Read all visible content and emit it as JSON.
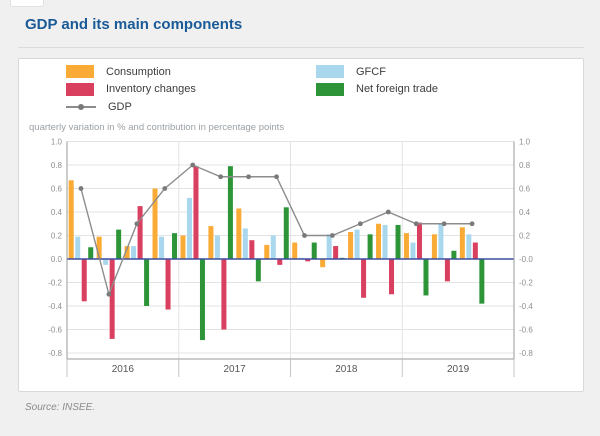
{
  "page": {
    "title": "GDP and its main components",
    "source": "Source: INSEE."
  },
  "legend": [
    {
      "label": "Consumption",
      "color": "#f9ab35"
    },
    {
      "label": "Inventory changes",
      "color": "#d93f5e"
    },
    {
      "label": "GDP",
      "color": "#8c8c8c"
    },
    {
      "label": "GFCF",
      "color": "#a8d7ee"
    },
    {
      "label": "Net foreign trade",
      "color": "#2d9538"
    }
  ],
  "chart_data": {
    "type": "bar",
    "subtitle": "quarterly variation in % and contribution in percentage points",
    "quarters": [
      "2016 Q1",
      "2016 Q2",
      "2016 Q3",
      "2016 Q4",
      "2017 Q1",
      "2017 Q2",
      "2017 Q3",
      "2017 Q4",
      "2018 Q1",
      "2018 Q2",
      "2018 Q3",
      "2018 Q4",
      "2019 Q1",
      "2019 Q2",
      "2019 Q3"
    ],
    "x_year_labels": [
      "2016",
      "2017",
      "2018",
      "2019"
    ],
    "slots_per_year": 4,
    "series": [
      {
        "name": "Consumption",
        "color": "#f9ab35",
        "values": [
          0.67,
          0.19,
          0.11,
          0.6,
          0.2,
          0.28,
          0.43,
          0.12,
          0.14,
          -0.07,
          0.23,
          0.3,
          0.22,
          0.21,
          0.27
        ]
      },
      {
        "name": "GFCF",
        "color": "#a8d7ee",
        "values": [
          0.19,
          -0.05,
          0.11,
          0.19,
          0.52,
          0.2,
          0.26,
          0.2,
          0.01,
          0.21,
          0.25,
          0.29,
          0.14,
          0.3,
          0.21
        ]
      },
      {
        "name": "Inventory changes",
        "color": "#d93f5e",
        "values": [
          -0.36,
          -0.68,
          0.45,
          -0.43,
          0.79,
          -0.6,
          0.16,
          -0.05,
          -0.02,
          0.11,
          -0.33,
          -0.3,
          0.31,
          -0.19,
          0.14
        ]
      },
      {
        "name": "Net foreign trade",
        "color": "#2d9538",
        "values": [
          0.1,
          0.25,
          -0.4,
          0.22,
          -0.69,
          0.79,
          -0.19,
          0.44,
          0.14,
          0.01,
          0.21,
          0.29,
          -0.31,
          0.07,
          -0.38
        ]
      }
    ],
    "line_series": {
      "name": "GDP",
      "color": "#8c8c8c",
      "marker_color": "#7a7a7a",
      "values": [
        0.6,
        -0.3,
        0.3,
        0.6,
        0.8,
        0.7,
        0.7,
        0.7,
        0.2,
        0.2,
        0.3,
        0.4,
        0.3,
        0.3,
        0.3
      ]
    },
    "ylim": [
      -0.8,
      1.0
    ],
    "ytick_step": 0.2,
    "left_tick_labels": [
      "1.0",
      "0.8",
      "0.6",
      "0.4",
      "0.2",
      "0.0",
      "-0.2",
      "-0.4",
      "-0.6",
      "-0.8"
    ],
    "right_tick_labels": [
      "1.0",
      "0.8",
      "0.6",
      "0.4",
      "0.2",
      "-0.0",
      "-0.2",
      "-0.4",
      "-0.6",
      "-0.8"
    ],
    "grid": true,
    "legend_position": "top",
    "zero_line_color": "#3d4ea1",
    "grid_color": "#e3e3e3",
    "axis_color": "#9a9a9a",
    "tick_label_color": "#8f8f8f",
    "year_label_color": "#555555"
  }
}
